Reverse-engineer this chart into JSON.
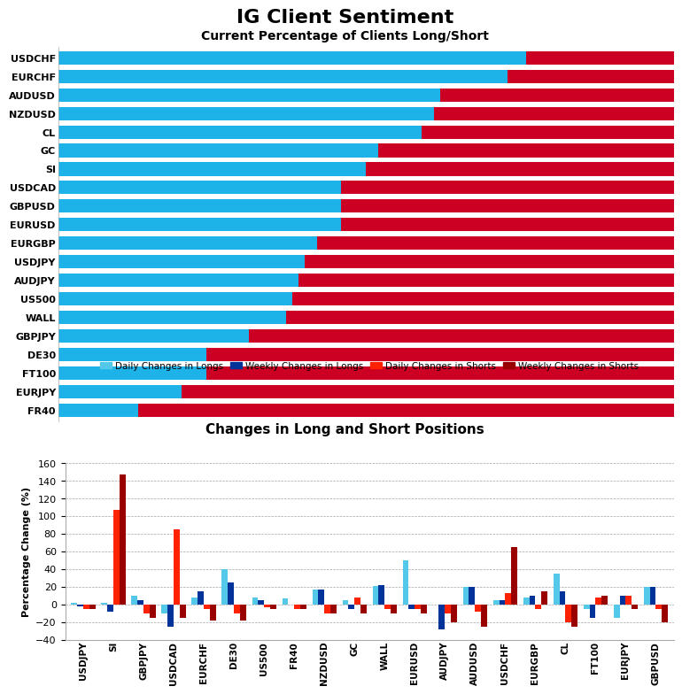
{
  "title": "IG Client Sentiment",
  "subtitle1": "Current Percentage of Clients Long/Short",
  "subtitle2": "Changes in Long and Short Positions",
  "bar_labels": [
    "USDCHF",
    "EURCHF",
    "AUDUSD",
    "NZDUSD",
    "CL",
    "GC",
    "SI",
    "USDCAD",
    "GBPUSD",
    "EURUSD",
    "EURGBP",
    "USDJPY",
    "AUDJPY",
    "US500",
    "WALL",
    "GBPJPY",
    "DE30",
    "FT100",
    "EURJPY",
    "FR40"
  ],
  "long_pct": [
    76,
    73,
    62,
    61,
    59,
    52,
    50,
    46,
    46,
    46,
    42,
    40,
    39,
    38,
    37,
    31,
    24,
    24,
    20,
    13
  ],
  "short_pct": [
    24,
    27,
    38,
    39,
    41,
    48,
    50,
    54,
    54,
    54,
    58,
    60,
    61,
    62,
    63,
    69,
    76,
    76,
    80,
    87
  ],
  "long_color": "#1DB3E8",
  "short_color": "#CC0022",
  "bar2_categories": [
    "USDJPY",
    "SI",
    "GBPJPY",
    "USDCAD",
    "EURCHF",
    "DE30",
    "US500",
    "FR40",
    "NZDUSD",
    "GC",
    "WALL",
    "EURUSD",
    "AUDJPY",
    "AUDUSD",
    "USDCHF",
    "EURGBP",
    "CL",
    "FT100",
    "EURJPY",
    "GBPUSD"
  ],
  "daily_longs": [
    2,
    2,
    10,
    -10,
    8,
    40,
    8,
    7,
    17,
    5,
    21,
    50,
    0,
    20,
    5,
    8,
    35,
    -5,
    -15,
    20
  ],
  "weekly_longs": [
    -2,
    -8,
    5,
    -25,
    15,
    25,
    5,
    0,
    17,
    -5,
    22,
    -5,
    -28,
    20,
    5,
    10,
    15,
    -15,
    10,
    20
  ],
  "daily_shorts": [
    -5,
    107,
    -10,
    85,
    -5,
    -10,
    -3,
    -5,
    -10,
    8,
    -5,
    -5,
    -10,
    -8,
    13,
    -5,
    -20,
    8,
    10,
    -5
  ],
  "weekly_shorts": [
    -5,
    147,
    -15,
    -15,
    -18,
    -18,
    -5,
    -5,
    -10,
    -10,
    -10,
    -10,
    -20,
    -25,
    65,
    15,
    -25,
    10,
    -5,
    -20
  ],
  "ylabel2": "Percentage Change (%)",
  "ylim2": [
    -40,
    160
  ],
  "yticks2": [
    -40,
    -20,
    0,
    20,
    40,
    60,
    80,
    100,
    120,
    140,
    160
  ],
  "daily_long_color": "#54C8E8",
  "weekly_long_color": "#003399",
  "daily_short_color": "#FF2200",
  "weekly_short_color": "#990000"
}
